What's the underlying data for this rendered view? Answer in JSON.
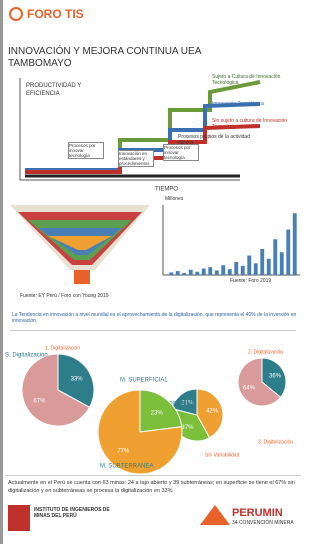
{
  "header": {
    "brand": "FORO TIS"
  },
  "title": "INNOVACIÓN Y MEJORA CONTINUA UEA TAMBOMAYO",
  "diagram": {
    "y_label": "PRODUCTIVIDAD Y EFICIENCIA",
    "x_label": "TIEMPO",
    "labels": [
      "Sujeto a Cultura de Innovación Tecnológica",
      "Innovación Tecnológica",
      "Sin sujeto a cultura de Innovación Tecnológica",
      "Procesos propios de la actividad minera"
    ],
    "boxes": [
      "Procesos por innovar tecnología",
      "Innovación en estándares y procedimientos",
      "Procesos por innovar tecnología"
    ]
  },
  "funnel": {
    "source": "Fuente: EY Perú / Foro con Young 2019"
  },
  "bar_chart": {
    "type": "bar",
    "title": "Millones",
    "values": [
      4,
      6,
      3,
      8,
      5,
      10,
      12,
      7,
      15,
      9,
      20,
      14,
      30,
      18,
      40,
      25,
      55,
      35,
      70,
      95
    ],
    "ylim": [
      0,
      100
    ],
    "color": "#4a7fb5",
    "source": "Fuente: Foro 2019"
  },
  "highlight": "La Tendencia en innovación a nivel mundial es el aprovechamiento de la digitalización, que representa el 40% de la inversión en innovación.",
  "pies": [
    {
      "title": "S. Digitalización",
      "subtitle": "1. Digitalización",
      "values": [
        33,
        67
      ],
      "value_labels": [
        "33%",
        "67%"
      ],
      "colors": [
        "#2e7d8a",
        "#d99a9a"
      ]
    },
    {
      "title": "M. SUPERFICIAL",
      "subtitle": "2. Digitalización",
      "values": [
        36,
        64
      ],
      "value_labels": [
        "36%",
        "64%"
      ],
      "colors": [
        "#2e7d8a",
        "#d99a9a"
      ]
    },
    {
      "title": "Sin Variabilidad",
      "subtitle": "3. Digitalización",
      "values": [
        42,
        37,
        21
      ],
      "value_labels": [
        "42%",
        "37%",
        "21%"
      ],
      "colors": [
        "#f0a030",
        "#7cbf3a",
        "#2e7d8a"
      ]
    },
    {
      "title": "M. SUBTERRANEA",
      "subtitle": "Sin Variabilidad",
      "values": [
        23,
        77
      ],
      "value_labels": [
        "23%",
        "77%"
      ],
      "colors": [
        "#7cbf3a",
        "#f0a030"
      ]
    }
  ],
  "footer_text": "Actualmente en el Perú se cuenta con 63 minas: 24 a tajo abierto y 39 subterráneas; en superficie se tiene el 67% sin digitalización y en subterráneas se procesa la digitalización en 33%",
  "logos": {
    "left": "INSTITUTO DE INGENIEROS DE MINAS DEL PERÚ",
    "right_name": "PERUMIN",
    "right_sub": "34 CONVENCIÓN MINERA"
  }
}
